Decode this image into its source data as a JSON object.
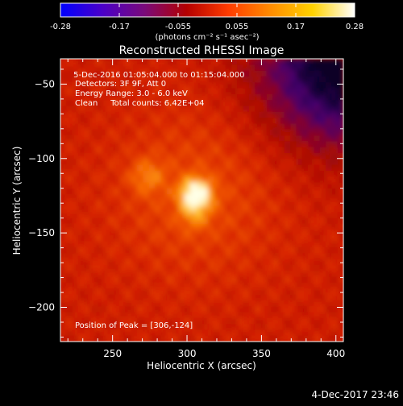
{
  "chart_data": {
    "type": "heatmap",
    "title": "Reconstructed RHESSI Image",
    "xlabel": "Heliocentric X (arcsec)",
    "ylabel": "Heliocentric Y (arcsec)",
    "xlim": [
      215,
      405
    ],
    "ylim": [
      -223,
      -33
    ],
    "xticks": [
      250,
      300,
      350,
      400
    ],
    "yticks": [
      -50,
      -100,
      -150,
      -200
    ],
    "colorbar": {
      "range": [
        -0.28,
        0.28
      ],
      "ticks": [
        "-0.28",
        "-0.17",
        "-0.055",
        "0.055",
        "0.17",
        "0.28"
      ],
      "units": "(photons cm⁻² s⁻¹ asec⁻²)",
      "colors": [
        "#0000ff",
        "#4b00c8",
        "#7a0a7a",
        "#b40000",
        "#ff3c00",
        "#ff8c00",
        "#ffd200",
        "#ffffff"
      ]
    },
    "info_lines": [
      " 5-Dec-2016 01:05:04.000 to 01:15:04.000",
      "Detectors: 3F 9F, Att 0",
      "Energy Range: 3.0 - 6.0 keV",
      "Clean     Total counts: 6.42E+04"
    ],
    "peak_label": "Position of Peak = [306,-124]",
    "peak": {
      "x": 306,
      "y": -124
    },
    "footer_date": "4-Dec-2017 23:46"
  }
}
